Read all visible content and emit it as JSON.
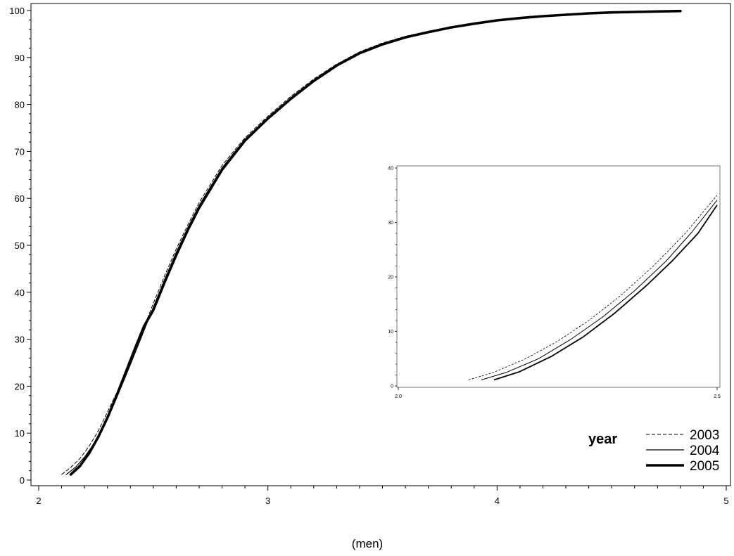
{
  "chart_data": {
    "type": "line",
    "title": "",
    "xlabel": "(men)",
    "ylabel": "",
    "xlim": [
      2,
      5
    ],
    "ylim": [
      0,
      100
    ],
    "x_ticks": [
      "2",
      "3",
      "4",
      "5"
    ],
    "y_ticks": [
      "0",
      "10",
      "20",
      "30",
      "40",
      "50",
      "60",
      "70",
      "80",
      "90",
      "100"
    ],
    "grid": false,
    "legend": {
      "title": "year",
      "placement": "bottom-right",
      "entries": [
        "2003",
        "2004",
        "2005"
      ]
    },
    "series": [
      {
        "name": "2003",
        "style": "dashed",
        "x": [
          2.1,
          2.14,
          2.18,
          2.22,
          2.26,
          2.3,
          2.35,
          2.4,
          2.45,
          2.5,
          2.55,
          2.6,
          2.65,
          2.7,
          2.8,
          2.9,
          3.0,
          3.1,
          3.2,
          3.3,
          3.4,
          3.5,
          3.6,
          3.7,
          3.8,
          3.9,
          4.0,
          4.1,
          4.2,
          4.3,
          4.4,
          4.5,
          4.6,
          4.7,
          4.8
        ],
        "y": [
          1.2,
          2.7,
          4.6,
          7.2,
          10.5,
          14.5,
          19.6,
          25.5,
          31.4,
          37.6,
          43.6,
          49.2,
          54.3,
          59.1,
          67.0,
          72.9,
          77.5,
          81.7,
          85.4,
          88.6,
          91.2,
          93.1,
          94.5,
          95.6,
          96.5,
          97.3,
          98.0,
          98.5,
          98.9,
          99.2,
          99.4,
          99.6,
          99.7,
          99.8,
          99.9
        ]
      },
      {
        "name": "2004",
        "style": "solid",
        "x": [
          2.12,
          2.16,
          2.2,
          2.24,
          2.28,
          2.32,
          2.36,
          2.4,
          2.45,
          2.5,
          2.55,
          2.6,
          2.65,
          2.7,
          2.8,
          2.9,
          3.0,
          3.1,
          3.2,
          3.3,
          3.4,
          3.5,
          3.6,
          3.7,
          3.8,
          3.9,
          4.0,
          4.1,
          4.2,
          4.3,
          4.4,
          4.5,
          4.6,
          4.7,
          4.8
        ],
        "y": [
          1.2,
          2.7,
          4.9,
          7.7,
          11.1,
          15.2,
          19.8,
          24.6,
          30.7,
          36.8,
          42.8,
          48.5,
          53.7,
          58.5,
          66.5,
          72.6,
          77.1,
          81.3,
          85.1,
          88.4,
          91.0,
          92.9,
          94.4,
          95.5,
          96.5,
          97.3,
          98.0,
          98.5,
          98.9,
          99.2,
          99.4,
          99.6,
          99.7,
          99.8,
          99.9
        ]
      },
      {
        "name": "2005",
        "style": "thick",
        "x": [
          2.14,
          2.18,
          2.22,
          2.26,
          2.3,
          2.34,
          2.38,
          2.42,
          2.46,
          2.5,
          2.55,
          2.6,
          2.65,
          2.7,
          2.8,
          2.9,
          3.0,
          3.1,
          3.2,
          3.3,
          3.4,
          3.5,
          3.6,
          3.7,
          3.8,
          3.9,
          4.0,
          4.1,
          4.2,
          4.3,
          4.4,
          4.5,
          4.6,
          4.7,
          4.8
        ],
        "y": [
          1.2,
          3.0,
          5.7,
          9.2,
          13.3,
          18.0,
          23.0,
          28.0,
          32.8,
          36.2,
          42.2,
          47.9,
          53.2,
          58.0,
          66.1,
          72.3,
          77.0,
          81.2,
          85.0,
          88.3,
          90.9,
          92.8,
          94.3,
          95.4,
          96.4,
          97.2,
          97.9,
          98.4,
          98.8,
          99.1,
          99.4,
          99.6,
          99.7,
          99.8,
          99.9
        ]
      }
    ],
    "inset": {
      "type": "line",
      "xlim": [
        2.0,
        2.5
      ],
      "ylim": [
        0,
        40
      ],
      "x_ticks": [
        "2.0",
        "2.5"
      ],
      "y_ticks": [
        "0",
        "10",
        "20",
        "30",
        "40"
      ],
      "series": [
        {
          "name": "2003",
          "style": "dashed",
          "x": [
            2.11,
            2.15,
            2.2,
            2.25,
            2.3,
            2.35,
            2.4,
            2.45,
            2.5
          ],
          "y": [
            1.1,
            2.5,
            5.0,
            8.2,
            12.1,
            16.7,
            22.0,
            28.0,
            35.0
          ]
        },
        {
          "name": "2004",
          "style": "solid",
          "x": [
            2.13,
            2.17,
            2.22,
            2.27,
            2.32,
            2.37,
            2.42,
            2.46,
            2.5
          ],
          "y": [
            1.1,
            2.5,
            5.0,
            8.5,
            12.6,
            17.4,
            22.9,
            28.2,
            34.1
          ]
        },
        {
          "name": "2005",
          "style": "thick",
          "x": [
            2.15,
            2.19,
            2.24,
            2.29,
            2.34,
            2.39,
            2.43,
            2.47,
            2.5
          ],
          "y": [
            1.1,
            2.6,
            5.4,
            9.0,
            13.4,
            18.5,
            23.0,
            28.0,
            33.2
          ]
        }
      ]
    }
  }
}
